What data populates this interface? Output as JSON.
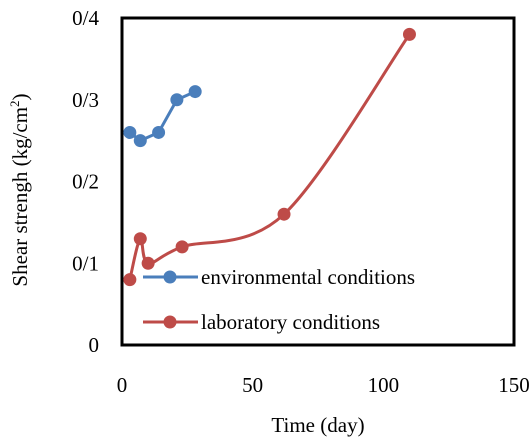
{
  "chart_data": {
    "type": "line",
    "title": "",
    "xlabel": "Time (day)",
    "ylabel_main": "Shear strengh (kg/cm",
    "ylabel_sup": "2",
    "ylabel_end": ")",
    "xlim": [
      0,
      150
    ],
    "ylim": [
      0,
      0.4
    ],
    "x_ticks": [
      {
        "value": 0,
        "label": "0"
      },
      {
        "value": 50,
        "label": "50"
      },
      {
        "value": 100,
        "label": "100"
      },
      {
        "value": 150,
        "label": "150"
      }
    ],
    "y_ticks": [
      {
        "value": 0,
        "label": "0"
      },
      {
        "value": 0.1,
        "label": "0/1"
      },
      {
        "value": 0.2,
        "label": "0/2"
      },
      {
        "value": 0.3,
        "label": "0/3"
      },
      {
        "value": 0.4,
        "label": "0/4"
      }
    ],
    "grid": false,
    "legend_position": "bottom-right",
    "series": [
      {
        "name": "environmental conditions",
        "color": "#4a7ebb",
        "smooth": false,
        "points": [
          [
            3,
            0.26
          ],
          [
            7,
            0.25
          ],
          [
            14,
            0.26
          ],
          [
            21,
            0.3
          ],
          [
            28,
            0.31
          ]
        ]
      },
      {
        "name": "laboratory conditions",
        "color": "#be4b48",
        "smooth": true,
        "points": [
          [
            3,
            0.08
          ],
          [
            7,
            0.13
          ],
          [
            10,
            0.1
          ],
          [
            23,
            0.12
          ],
          [
            62,
            0.16
          ],
          [
            110,
            0.38
          ]
        ]
      }
    ]
  }
}
